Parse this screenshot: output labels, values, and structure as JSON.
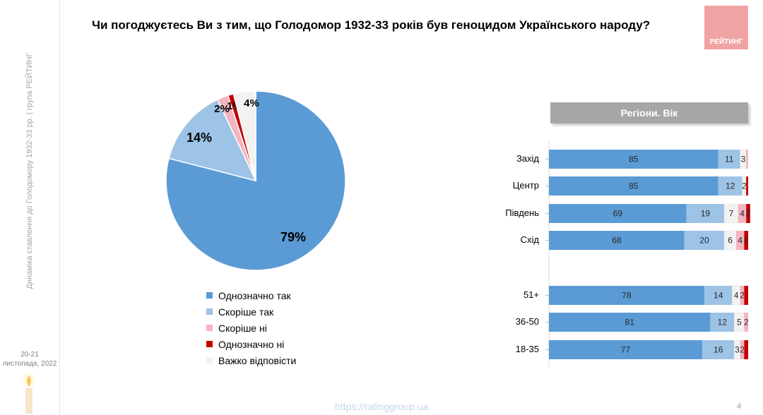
{
  "title": "Чи погоджуєтесь Ви з тим, що Голодомор 1932-33 років був геноцидом Українського народу?",
  "sidebar": {
    "caption": "Динаміка ставлення до Голодомору 1932-33 рр. | група РЕЙТИНГ",
    "date_line1": "20-21",
    "date_line2": "листопада, 2022"
  },
  "logo": {
    "text": "РЕЙТИНГ"
  },
  "colors": {
    "definitely_yes": "#5b9bd5",
    "rather_yes": "#9dc3e6",
    "rather_no": "#f4b4c0",
    "definitely_no": "#c00000",
    "hard_to_say": "#f2f2f2"
  },
  "legend": [
    "Однозначно так",
    "Скоріше так",
    "Скоріше ні",
    "Однозначно ні",
    "Важко відповісти"
  ],
  "regions_header": "Регіони. Вік",
  "footer": {
    "url": "https://ratinggroup.ua",
    "page": "4"
  },
  "chart_data": [
    {
      "type": "pie",
      "categories": [
        "Однозначно так",
        "Скоріше так",
        "Скоріше ні",
        "Однозначно ні",
        "Важко відповісти"
      ],
      "values": [
        79,
        14,
        2,
        1,
        4
      ],
      "labels": [
        "79%",
        "14%",
        "2%",
        "1%",
        "4%"
      ]
    },
    {
      "type": "bar",
      "orientation": "horizontal",
      "stacked": true,
      "categories": [
        "Захід",
        "Центр",
        "Південь",
        "Схід",
        "51+",
        "36-50",
        "18-35"
      ],
      "series": [
        {
          "name": "Однозначно так",
          "values": [
            85,
            85,
            69,
            68,
            78,
            81,
            77
          ]
        },
        {
          "name": "Скоріше так",
          "values": [
            11,
            12,
            19,
            20,
            14,
            12,
            16
          ]
        },
        {
          "name": "Важко відповісти",
          "values": [
            3,
            2,
            7,
            6,
            4,
            5,
            3
          ]
        },
        {
          "name": "Скоріше ні",
          "values": [
            1,
            0,
            4,
            4,
            2,
            2,
            2
          ]
        },
        {
          "name": "Однозначно ні",
          "values": [
            0,
            1,
            2,
            2,
            2,
            0,
            2
          ]
        }
      ],
      "value_labels": [
        [
          "85",
          "11",
          "3",
          "",
          ""
        ],
        [
          "85",
          "12",
          "2",
          "",
          ""
        ],
        [
          "69",
          "19",
          "7",
          "4",
          "2"
        ],
        [
          "68",
          "20",
          "6",
          "4",
          "2"
        ],
        [
          "78",
          "14",
          "4",
          "2",
          ""
        ],
        [
          "81",
          "12",
          "5",
          "2",
          ""
        ],
        [
          "77",
          "16",
          "3",
          "2",
          ""
        ]
      ]
    }
  ]
}
